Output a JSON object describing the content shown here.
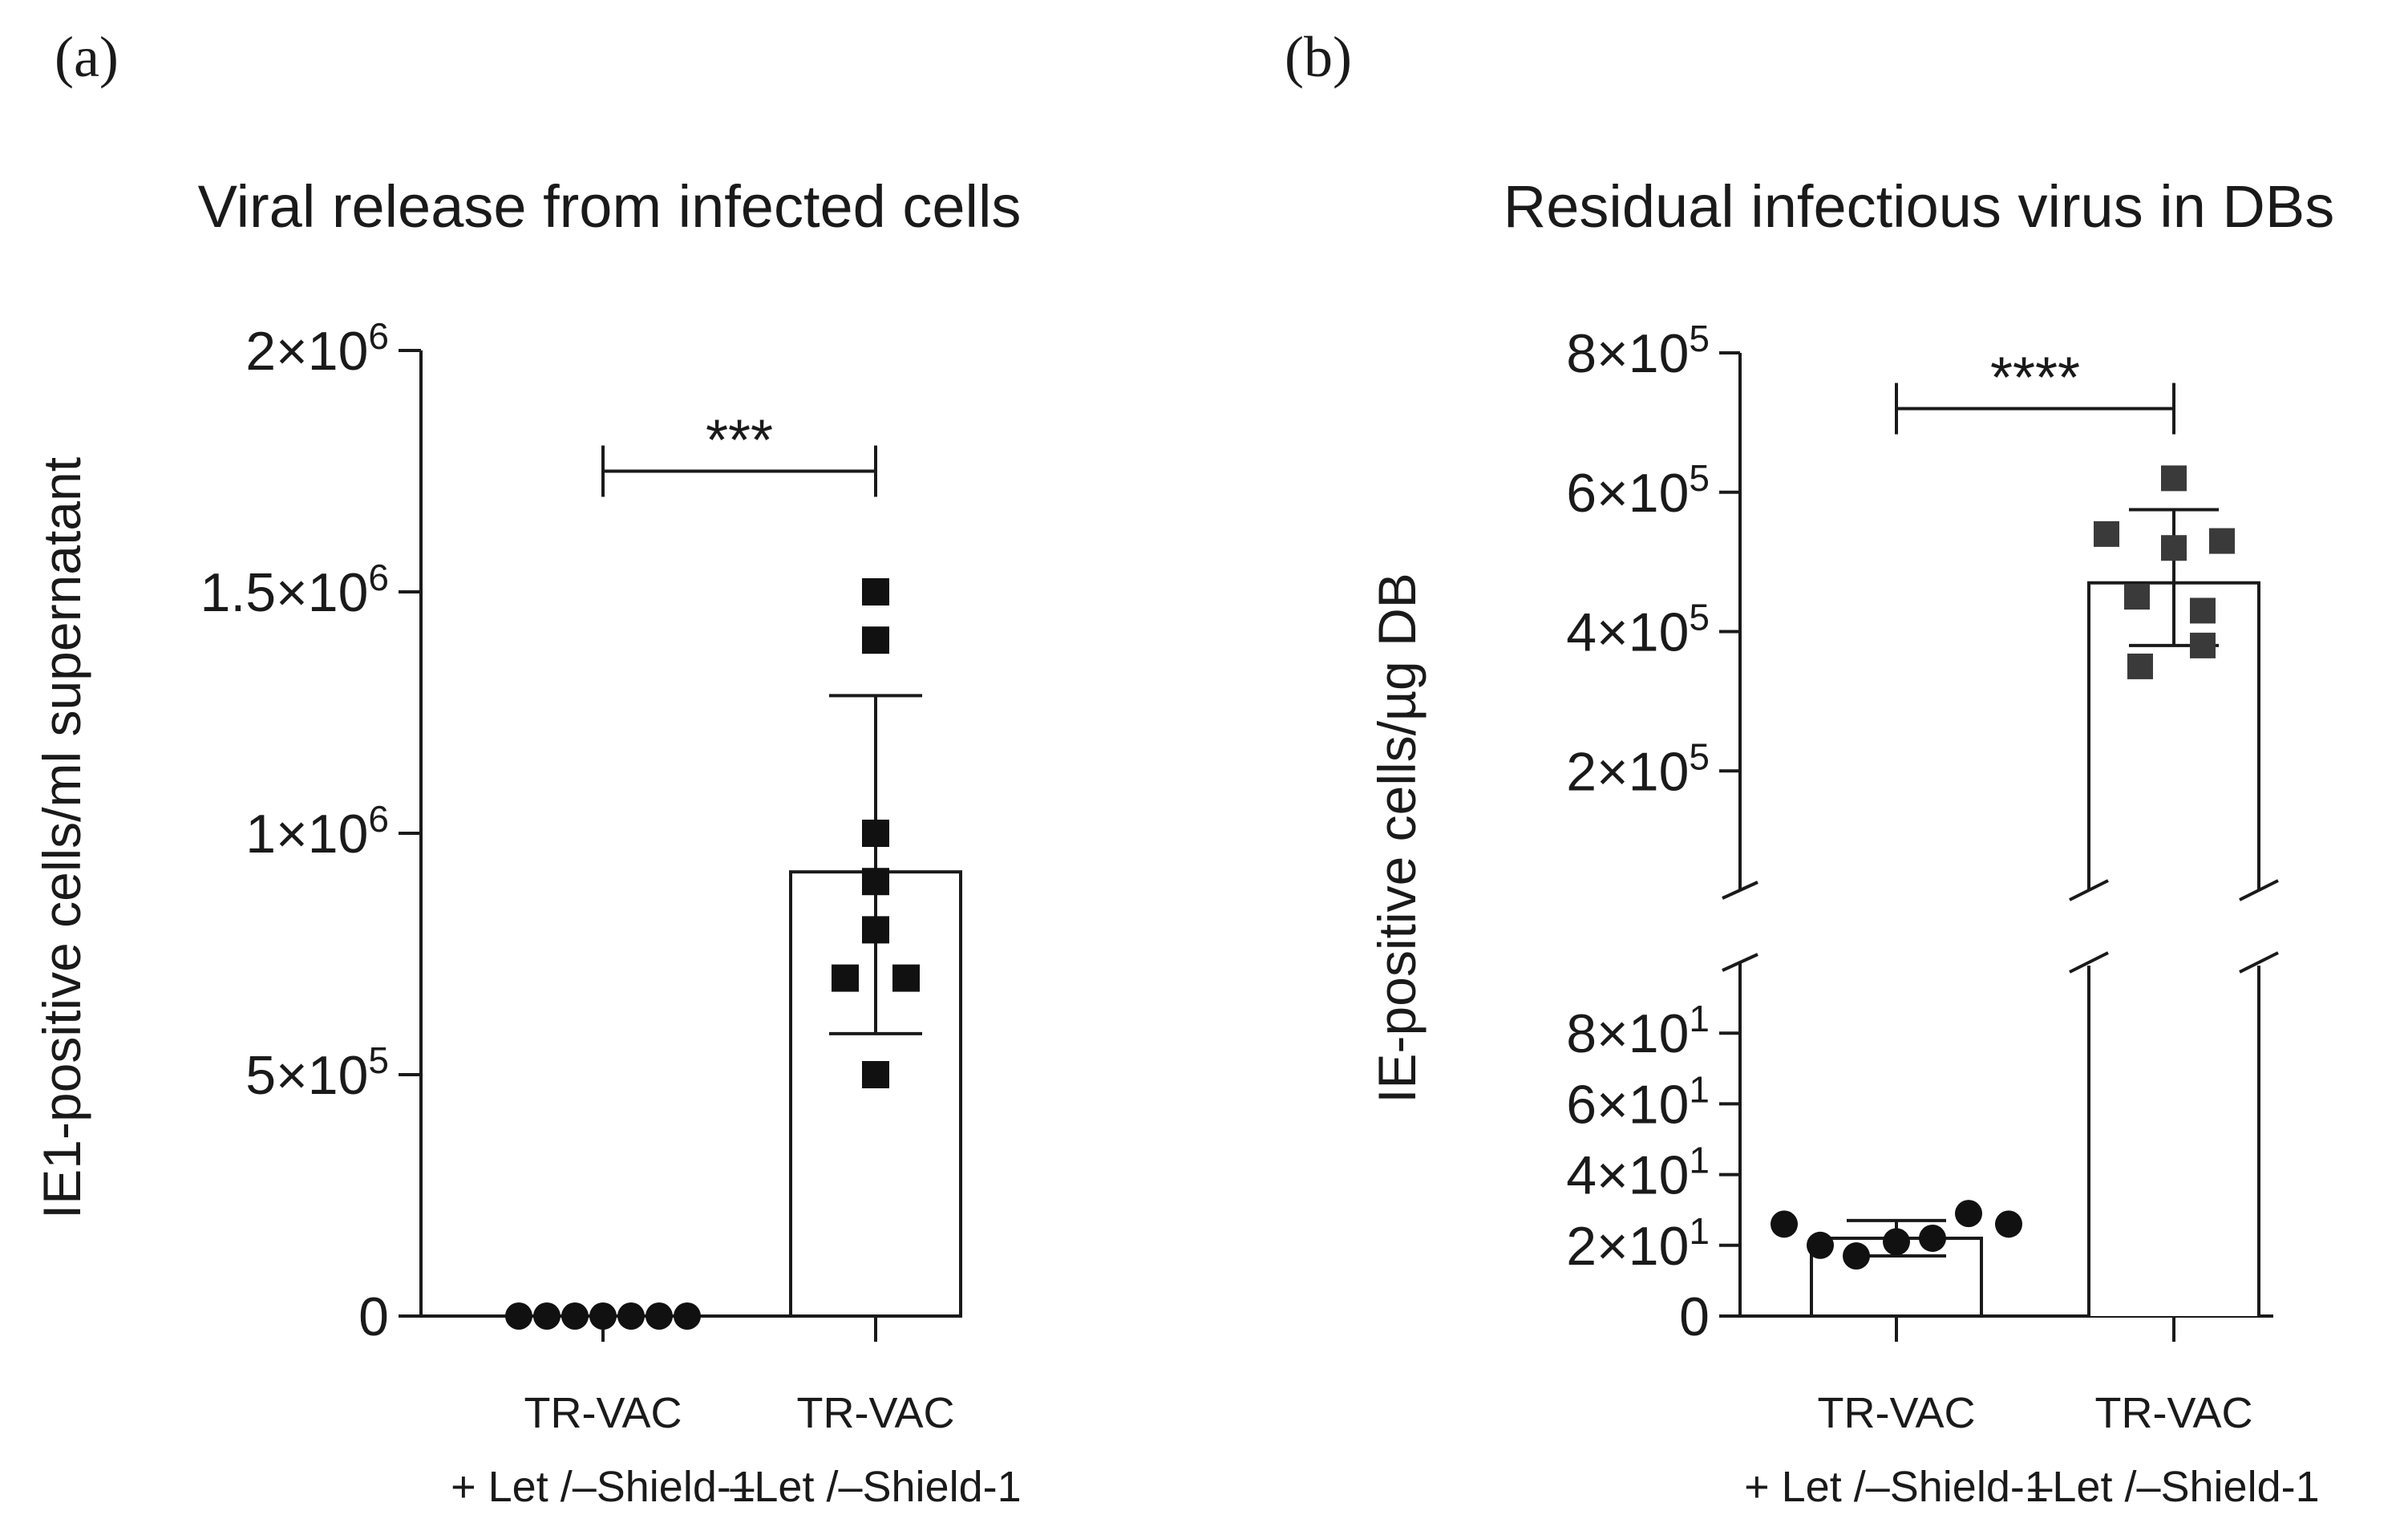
{
  "chart_data": [
    {
      "panel": "(a)",
      "type": "bar",
      "title": "Viral release from infected cells",
      "ylabel": "IE1-positive cells/ml supernatant",
      "ylim": [
        0,
        2000000
      ],
      "yticks": [
        {
          "value": 0,
          "base": "0",
          "exp": ""
        },
        {
          "value": 500000,
          "base": "5×10",
          "exp": "5"
        },
        {
          "value": 1000000,
          "base": "1×10",
          "exp": "6"
        },
        {
          "value": 1500000,
          "base": "1.5×10",
          "exp": "6"
        },
        {
          "value": 2000000,
          "base": "2×10",
          "exp": "6"
        }
      ],
      "categories": [
        [
          "TR-VAC",
          "+ Let /–Shield-1"
        ],
        [
          "TR-VAC",
          "–Let /–Shield-1"
        ]
      ],
      "bars": [
        {
          "mean": 0,
          "err_low": 0,
          "err_high": 0
        },
        {
          "mean": 920000,
          "err_low": 585000,
          "err_high": 1285000
        }
      ],
      "points": [
        {
          "marker": "circle",
          "values": [
            0,
            0,
            0,
            0,
            0,
            0,
            0
          ]
        },
        {
          "marker": "square",
          "values": [
            1500000,
            1400000,
            1000000,
            900000,
            800000,
            700000,
            700000,
            500000
          ]
        }
      ],
      "significance": {
        "label": "***",
        "from": 0,
        "to": 1,
        "y": 1750000
      }
    },
    {
      "panel": "(b)",
      "type": "bar",
      "title": "Residual infectious virus in DBs",
      "ylabel": "IE-positive cells/µg DB",
      "broken_axis": true,
      "lower_ylim": [
        0,
        100
      ],
      "upper_ylim": [
        0,
        800000
      ],
      "lower_yticks": [
        {
          "value": 0,
          "base": "0",
          "exp": ""
        },
        {
          "value": 20,
          "base": "2×10",
          "exp": "1"
        },
        {
          "value": 40,
          "base": "4×10",
          "exp": "1"
        },
        {
          "value": 60,
          "base": "6×10",
          "exp": "1"
        },
        {
          "value": 80,
          "base": "8×10",
          "exp": "1"
        }
      ],
      "upper_yticks": [
        {
          "value": 200000,
          "base": "2×10",
          "exp": "5"
        },
        {
          "value": 400000,
          "base": "4×10",
          "exp": "5"
        },
        {
          "value": 600000,
          "base": "6×10",
          "exp": "5"
        },
        {
          "value": 800000,
          "base": "8×10",
          "exp": "5"
        }
      ],
      "categories": [
        [
          "TR-VAC",
          "+ Let /–Shield-1"
        ],
        [
          "TR-VAC",
          "–Let /–Shield-1"
        ]
      ],
      "bars": [
        {
          "mean": 22,
          "err_low": 17,
          "err_high": 27
        },
        {
          "mean": 470000,
          "err_low": 380000,
          "err_high": 575000
        }
      ],
      "points": [
        {
          "marker": "circle",
          "values": [
            26,
            20,
            17,
            21,
            22,
            29,
            26
          ]
        },
        {
          "marker": "square",
          "values": [
            620000,
            540000,
            530000,
            520000,
            450000,
            430000,
            380000,
            350000
          ]
        }
      ],
      "significance": {
        "label": "****",
        "from": 0,
        "to": 1,
        "y": 720000
      }
    }
  ]
}
